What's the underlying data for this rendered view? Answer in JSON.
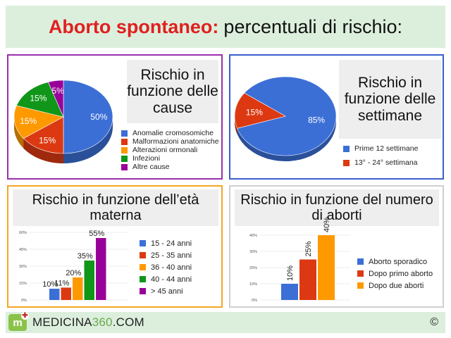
{
  "header": {
    "title_highlight": "Aborto spontaneo:",
    "title_rest": "percentuali di rischio:"
  },
  "panels": {
    "cause": {
      "title": "Rischio in funzione delle cause"
    },
    "settimane": {
      "title": "Rischio in funzione delle settimane"
    },
    "eta": {
      "title": "Rischio in funzione dell’età materna"
    },
    "aborti": {
      "title": "Rischio in funzione del numero di aborti"
    }
  },
  "chart_data": [
    {
      "type": "pie",
      "title": "Rischio in funzione delle cause",
      "categories": [
        "Anomalie cromosomiche",
        "Malformazioni anatomiche",
        "Alterazioni ormonali",
        "Infezioni",
        "Altre cause"
      ],
      "values": [
        50,
        15,
        15,
        15,
        5
      ],
      "labels": [
        "50%",
        "15%",
        "15%",
        "15%",
        "5%"
      ],
      "colors": [
        "#3b6fd6",
        "#dc3912",
        "#ff9900",
        "#109618",
        "#990099"
      ],
      "legend": "right"
    },
    {
      "type": "pie",
      "title": "Rischio in funzione delle settimane",
      "categories": [
        "Prime 12 settimane",
        "13° - 24° settimana"
      ],
      "values": [
        85,
        15
      ],
      "labels": [
        "85%",
        "15%"
      ],
      "colors": [
        "#3b6fd6",
        "#dc3912"
      ],
      "legend": "right"
    },
    {
      "type": "bar",
      "title": "Rischio in funzione dell’età materna",
      "categories": [
        "15 - 24 anni",
        "25 - 35 anni",
        "36 - 40 anni",
        "40 - 44 anni",
        "> 45 anni"
      ],
      "values": [
        10,
        11,
        20,
        35,
        55
      ],
      "labels": [
        "10%",
        "11%",
        "20%",
        "35%",
        "55%"
      ],
      "colors": [
        "#3b6fd6",
        "#dc3912",
        "#ff9900",
        "#109618",
        "#990099"
      ],
      "ylim": [
        0,
        60
      ],
      "yticks": [
        "0%",
        "15%",
        "30%",
        "45%",
        "60%"
      ],
      "grid": true,
      "legend": "right"
    },
    {
      "type": "bar",
      "title": "Rischio in funzione del numero di aborti",
      "categories": [
        "Aborto sporadico",
        "Dopo primo aborto",
        "Dopo due aborti"
      ],
      "values": [
        10,
        25,
        40
      ],
      "labels": [
        "10%",
        "25%",
        "40%"
      ],
      "colors": [
        "#3b6fd6",
        "#dc3912",
        "#ff9900"
      ],
      "ylim": [
        0,
        40
      ],
      "yticks": [
        "0%",
        "10%",
        "20%",
        "30%",
        "40%"
      ],
      "grid": true,
      "legend": "right"
    }
  ],
  "footer": {
    "logo_letter": "m",
    "brand_main": "MEDICINA",
    "brand_num": "360",
    "brand_tld": ".COM",
    "copyright": "©"
  }
}
